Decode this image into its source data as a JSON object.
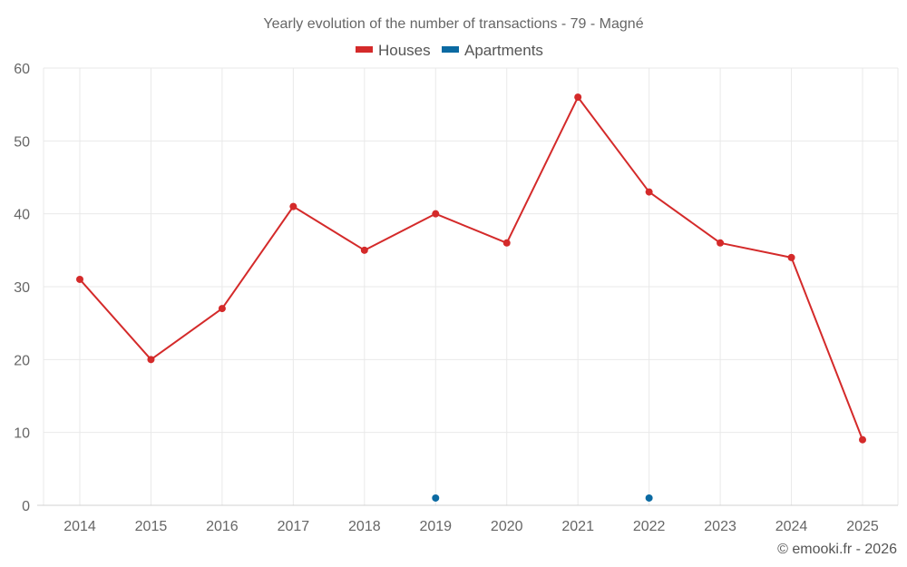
{
  "chart_data": {
    "type": "line",
    "title": "Yearly evolution of the number of transactions - 79 - Magné",
    "xlabel": "",
    "ylabel": "",
    "x": [
      "2014",
      "2015",
      "2016",
      "2017",
      "2018",
      "2019",
      "2020",
      "2021",
      "2022",
      "2023",
      "2024",
      "2025"
    ],
    "ylim": [
      0,
      60
    ],
    "yticks": [
      0,
      10,
      20,
      30,
      40,
      50,
      60
    ],
    "grid": true,
    "legend_position": "top-center",
    "series": [
      {
        "name": "Houses",
        "color": "#d42a2a",
        "values": [
          31,
          20,
          27,
          41,
          35,
          40,
          36,
          56,
          43,
          36,
          34,
          9
        ]
      },
      {
        "name": "Apartments",
        "color": "#0b6aa2",
        "values": [
          null,
          null,
          null,
          null,
          null,
          1,
          null,
          null,
          1,
          null,
          null,
          null
        ]
      }
    ],
    "credit": "© emooki.fr - 2026"
  }
}
